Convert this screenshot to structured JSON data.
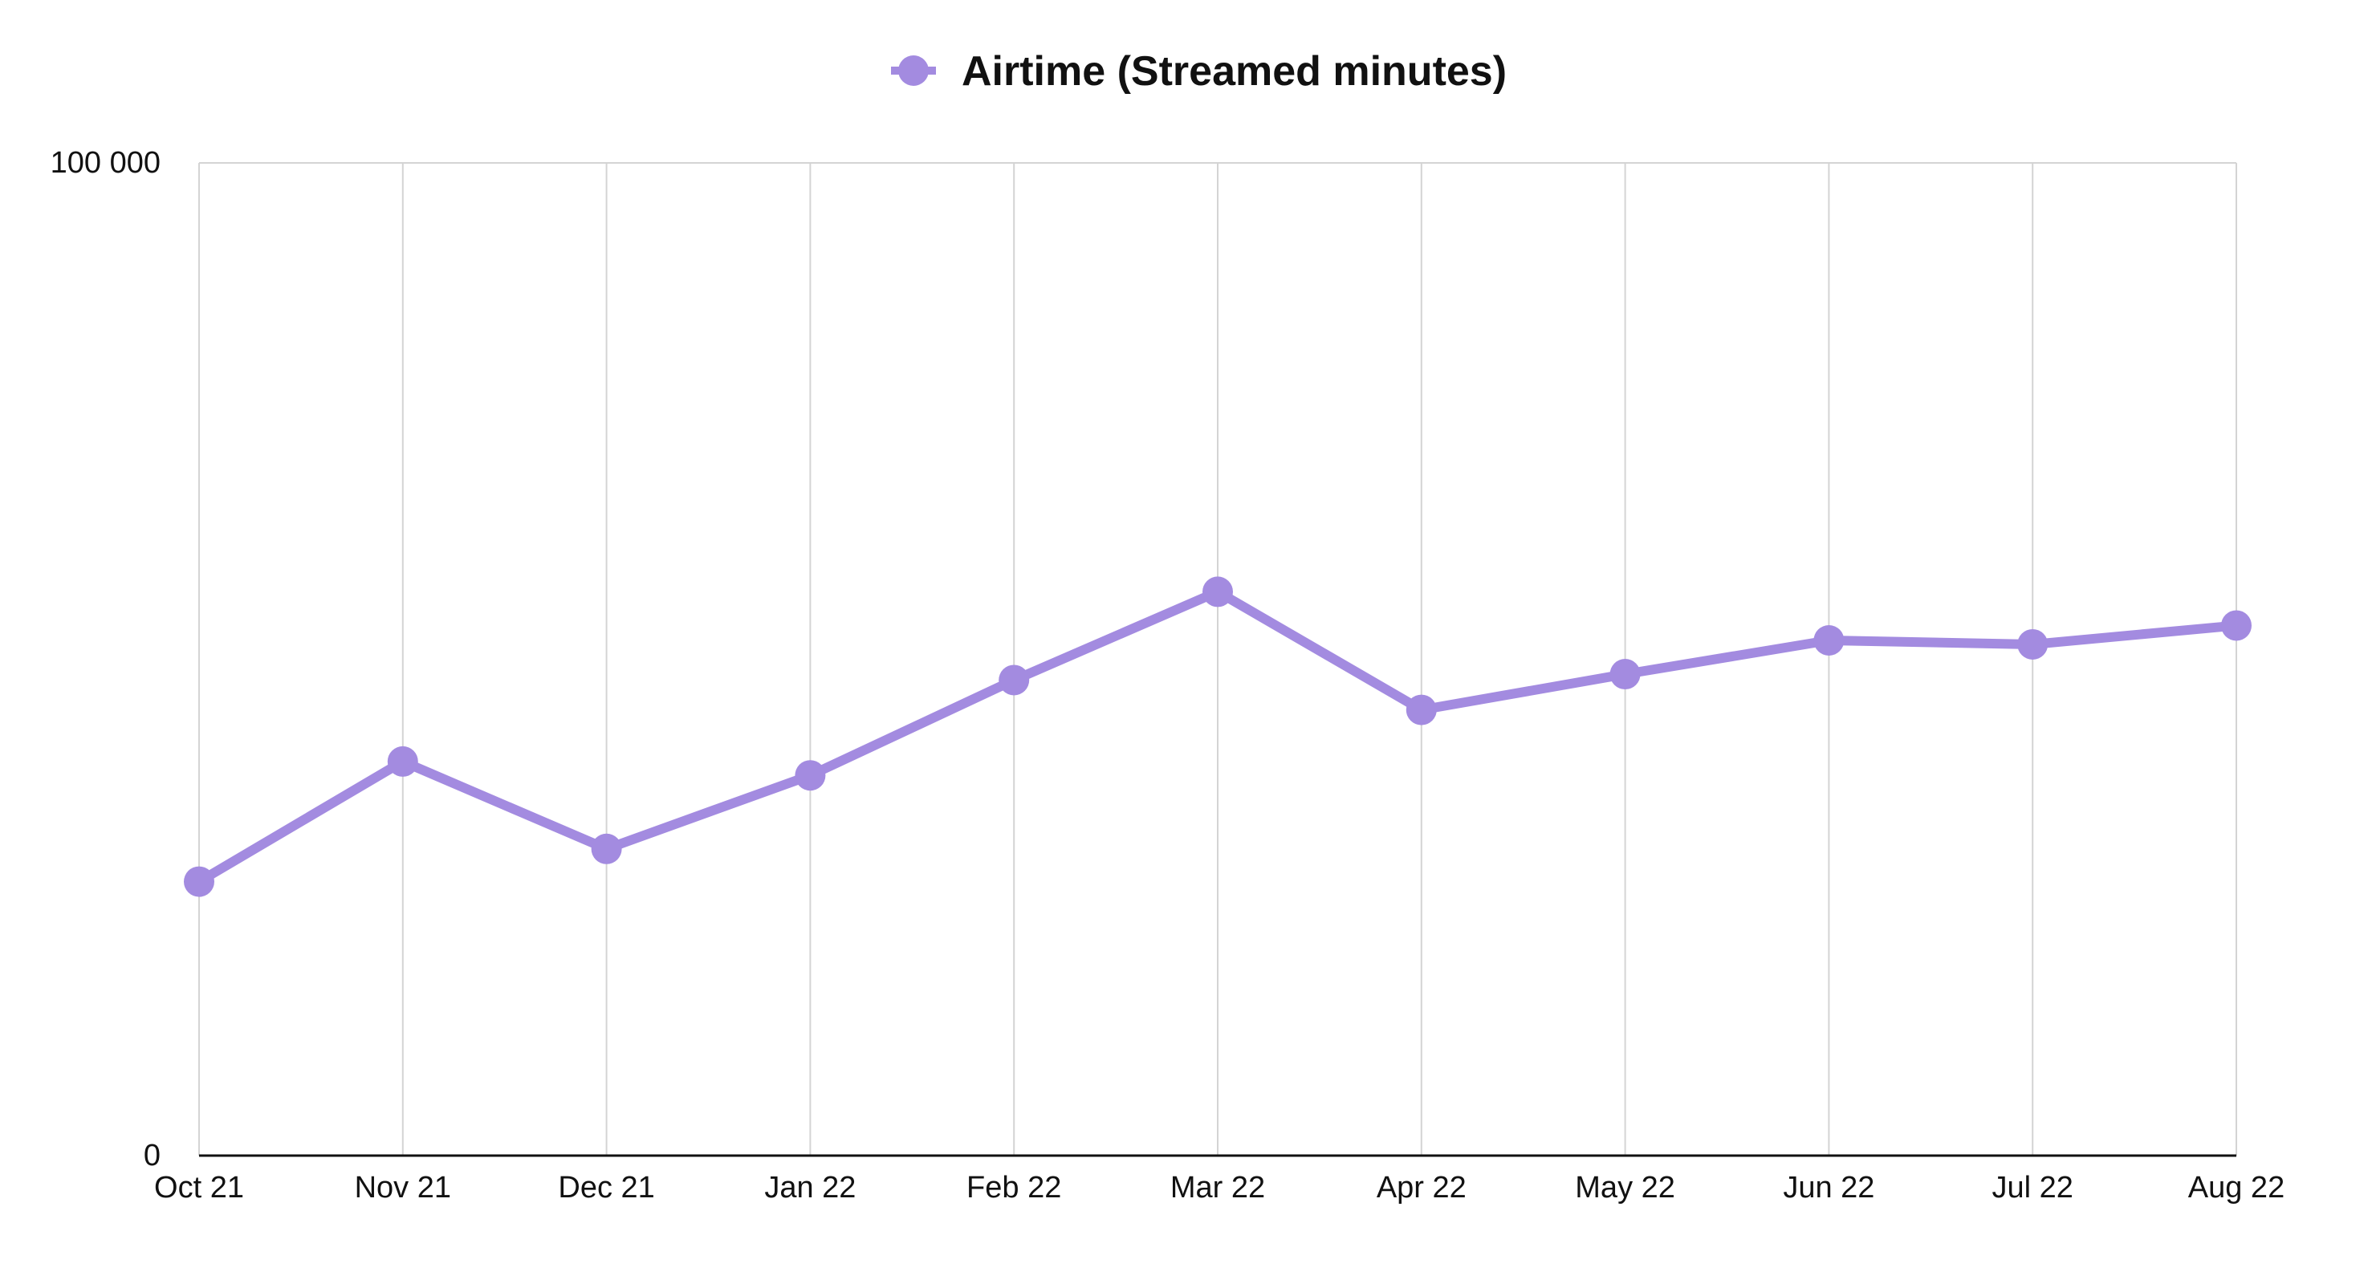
{
  "chart_data": {
    "type": "line",
    "title": "",
    "legend": [
      "Airtime (Streamed minutes)"
    ],
    "legend_position": "top-center",
    "xlabel": "",
    "ylabel": "",
    "categories": [
      "Oct 21",
      "Nov 21",
      "Dec 21",
      "Jan 22",
      "Feb 22",
      "Mar 22",
      "Apr 22",
      "May 22",
      "Jun 22",
      "Jul 22",
      "Aug 22"
    ],
    "series": [
      {
        "name": "Airtime (Streamed minutes)",
        "color": "#a38be0",
        "values": [
          27600,
          39700,
          30900,
          38300,
          47900,
          56800,
          44900,
          48500,
          51900,
          51500,
          53400
        ]
      }
    ],
    "ylim": [
      0,
      100000
    ],
    "yticks": [
      0,
      100000
    ],
    "ytick_labels": [
      "0",
      "100 000"
    ],
    "grid": "vertical"
  }
}
